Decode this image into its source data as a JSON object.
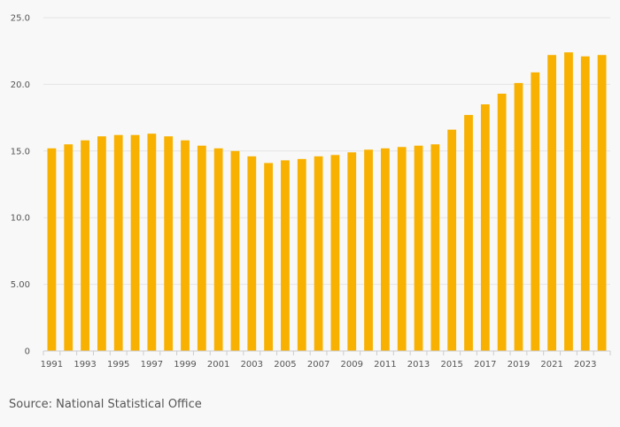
{
  "chart_data": {
    "type": "bar",
    "title": "",
    "xlabel": "",
    "ylabel": "",
    "ylim": [
      0,
      25
    ],
    "y_ticks": [
      0,
      5,
      10,
      15,
      20,
      25
    ],
    "y_tick_labels": [
      "0",
      "5.00",
      "10.0",
      "15.0",
      "20.0",
      "25.0"
    ],
    "grid": "horizontal",
    "bar_color": "#f8b100",
    "categories": [
      "1991",
      "1992",
      "1993",
      "1994",
      "1995",
      "1996",
      "1997",
      "1998",
      "1999",
      "2000",
      "2001",
      "2002",
      "2003",
      "2004",
      "2005",
      "2006",
      "2007",
      "2008",
      "2009",
      "2010",
      "2011",
      "2012",
      "2013",
      "2014",
      "2015",
      "2016",
      "2017",
      "2018",
      "2019",
      "2020",
      "2021",
      "2022",
      "2023",
      "2024"
    ],
    "x_tick_labels": [
      "1991",
      "1993",
      "1995",
      "1997",
      "1999",
      "2001",
      "2003",
      "2005",
      "2007",
      "2009",
      "2011",
      "2013",
      "2015",
      "2017",
      "2019",
      "2021",
      "2023"
    ],
    "values": [
      15.2,
      15.5,
      15.8,
      16.1,
      16.2,
      16.2,
      16.3,
      16.1,
      15.8,
      15.4,
      15.2,
      15.0,
      14.6,
      14.1,
      14.3,
      14.4,
      14.6,
      14.7,
      14.9,
      15.1,
      15.2,
      15.3,
      15.4,
      15.5,
      16.6,
      17.7,
      18.5,
      19.3,
      20.1,
      20.9,
      22.2,
      22.4,
      22.1,
      22.2
    ]
  },
  "source": "Source: National Statistical Office"
}
